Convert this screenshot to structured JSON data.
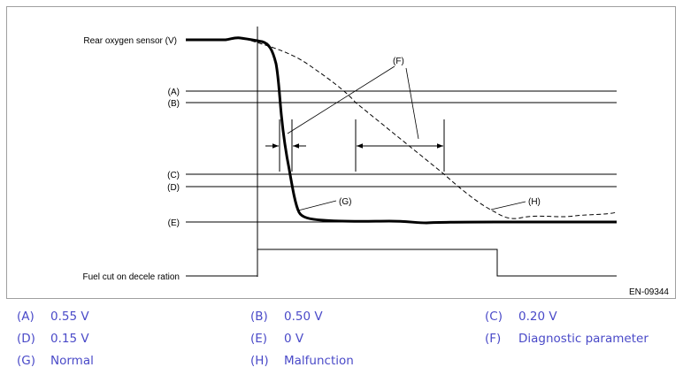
{
  "diagram": {
    "y_axis_label": "Rear oxygen sensor (V)",
    "level_labels": [
      "(A)",
      "(B)",
      "(C)",
      "(D)",
      "(E)"
    ],
    "fuel_cut_label": "Fuel cut on decele ration",
    "callout_f": "(F)",
    "callout_g": "(G)",
    "callout_h": "(H)",
    "figure_id": "EN-09344"
  },
  "legend": [
    {
      "key": "(A)",
      "text": "0.55 V"
    },
    {
      "key": "(B)",
      "text": "0.50 V"
    },
    {
      "key": "(C)",
      "text": "0.20 V"
    },
    {
      "key": "(D)",
      "text": "0.15 V"
    },
    {
      "key": "(E)",
      "text": "0 V"
    },
    {
      "key": "(F)",
      "text": "Diagnostic parameter"
    },
    {
      "key": "(G)",
      "text": "Normal"
    },
    {
      "key": "(H)",
      "text": "Malfunction"
    }
  ],
  "colors": {
    "legend_text": "#4a4ac8",
    "line": "#000000",
    "frame": "#a0a0a0"
  }
}
